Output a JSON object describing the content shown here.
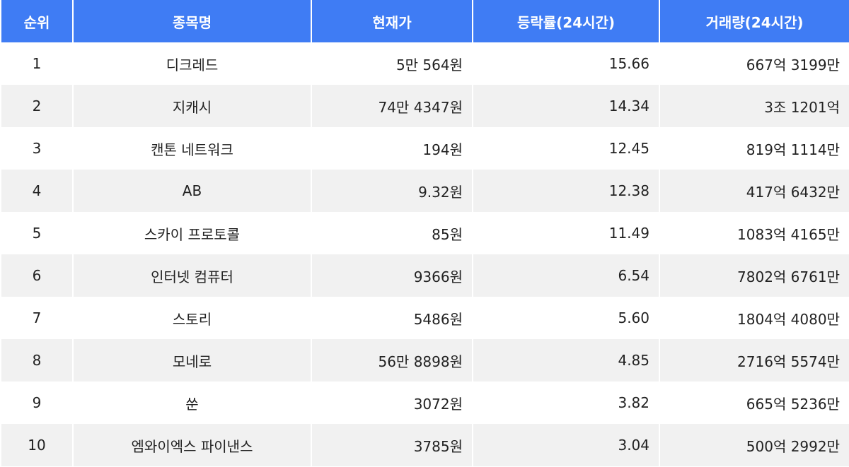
{
  "colors": {
    "header": "#3f7cf4",
    "stripe": "#f1f1f1"
  },
  "headers": [
    "순위",
    "종목명",
    "현재가",
    "등락률(24시간)",
    "거래량(24시간)"
  ],
  "rows": [
    [
      "1",
      "디크레드",
      "5만 564원",
      "15.66",
      "667억 3199만"
    ],
    [
      "2",
      "지캐시",
      "74만 4347원",
      "14.34",
      "3조 1201억"
    ],
    [
      "3",
      "캔톤 네트워크",
      "194원",
      "12.45",
      "819억 1114만"
    ],
    [
      "4",
      "AB",
      "9.32원",
      "12.38",
      "417억 6432만"
    ],
    [
      "5",
      "스카이 프로토콜",
      "85원",
      "11.49",
      "1083억 4165만"
    ],
    [
      "6",
      "인터넷 컴퓨터",
      "9366원",
      "6.54",
      "7802억 6761만"
    ],
    [
      "7",
      "스토리",
      "5486원",
      "5.60",
      "1804억 4080만"
    ],
    [
      "8",
      "모네로",
      "56만 8898원",
      "4.85",
      "2716억 5574만"
    ],
    [
      "9",
      "쑨",
      "3072원",
      "3.82",
      "665억 5236만"
    ],
    [
      "10",
      "엠와이엑스 파이낸스",
      "3785원",
      "3.04",
      "500억 2992만"
    ]
  ]
}
